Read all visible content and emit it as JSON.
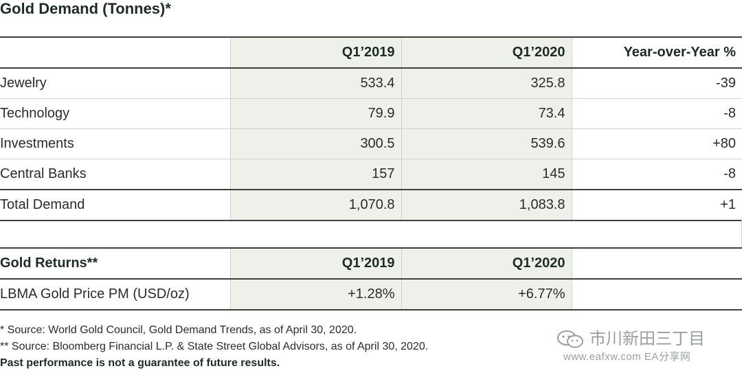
{
  "title": "Gold Demand (Tonnes)*",
  "demand_table": {
    "headers": [
      "",
      "Q1’2019",
      "Q1’2020",
      "Year-over-Year %"
    ],
    "rows": [
      {
        "label": "Jewelry",
        "q1_2019": "533.4",
        "q1_2020": "325.8",
        "yoy": "-39"
      },
      {
        "label": "Technology",
        "q1_2019": "79.9",
        "q1_2020": "73.4",
        "yoy": "-8"
      },
      {
        "label": "Investments",
        "q1_2019": "300.5",
        "q1_2020": "539.6",
        "yoy": "+80"
      },
      {
        "label": "Central Banks",
        "q1_2019": "157",
        "q1_2020": "145",
        "yoy": "-8"
      }
    ],
    "total": {
      "label": "Total Demand",
      "q1_2019": "1,070.8",
      "q1_2020": "1,083.8",
      "yoy": "+1"
    }
  },
  "returns_table": {
    "headers": [
      "Gold Returns**",
      "Q1’2019",
      "Q1’2020",
      ""
    ],
    "rows": [
      {
        "label": "LBMA Gold Price PM (USD/oz)",
        "q1_2019": "+1.28%",
        "q1_2020": "+6.77%",
        "yoy": ""
      }
    ]
  },
  "footnotes": {
    "source1": "* Source: World Gold Council, Gold Demand Trends, as of April 30, 2020.",
    "source2": "** Source: Bloomberg Financial L.P. & State Street Global Advisors, as of April 30, 2020.",
    "disclaimer": "Past performance is not a guarantee of future results."
  },
  "watermark": {
    "name": "市川新田三丁目",
    "url": "www.eafxw.com  EA分享网"
  },
  "colors": {
    "shade": "#eef0ea",
    "rule": "#3c3f3b",
    "title": "#1f2b25"
  }
}
